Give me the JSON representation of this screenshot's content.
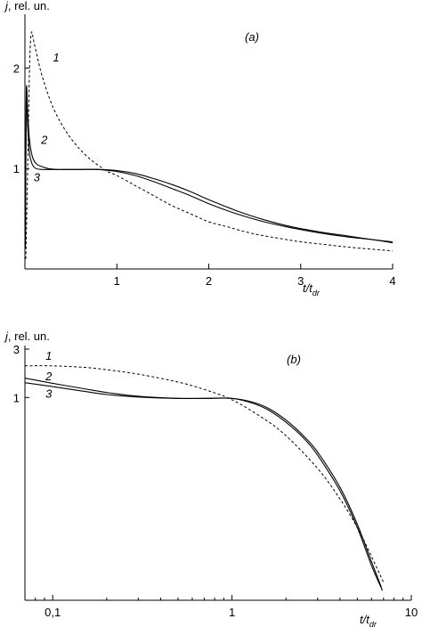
{
  "chart_data": [
    {
      "type": "line",
      "panel_label": "(a)",
      "ylabel_symbol": "j",
      "ylabel_unit": ", rel. un.",
      "xlabel_main": "t/t",
      "xlabel_sub": "dr",
      "xlim": [
        0,
        4
      ],
      "ylim": [
        0,
        2.5
      ],
      "xscale": "linear",
      "yscale": "linear",
      "x_ticks": [
        {
          "v": 1,
          "label": "1"
        },
        {
          "v": 2,
          "label": "2"
        },
        {
          "v": 3,
          "label": "3"
        },
        {
          "v": 4,
          "label": "4"
        }
      ],
      "y_ticks": [
        {
          "v": 1,
          "label": "1"
        },
        {
          "v": 2,
          "label": "2"
        }
      ],
      "series": [
        {
          "name": "1",
          "style": "dashed",
          "x": [
            0.01,
            0.03,
            0.05,
            0.07,
            0.1,
            0.15,
            0.2,
            0.3,
            0.4,
            0.5,
            0.6,
            0.7,
            0.8,
            0.9,
            1.0,
            1.2,
            1.4,
            1.6,
            1.8,
            2.0,
            2.2,
            2.4,
            2.6,
            2.8,
            3.0,
            3.3,
            3.6,
            4.0
          ],
          "y": [
            0.1,
            1.0,
            2.0,
            2.35,
            2.25,
            2.05,
            1.88,
            1.62,
            1.44,
            1.3,
            1.19,
            1.1,
            1.03,
            0.97,
            0.93,
            0.83,
            0.73,
            0.63,
            0.55,
            0.47,
            0.42,
            0.37,
            0.33,
            0.3,
            0.27,
            0.24,
            0.21,
            0.18
          ]
        },
        {
          "name": "2",
          "style": "solid",
          "x": [
            0.005,
            0.015,
            0.03,
            0.05,
            0.08,
            0.12,
            0.18,
            0.25,
            0.35,
            0.45,
            0.6,
            0.8,
            1.0,
            1.2,
            1.4,
            1.6,
            1.8,
            2.0,
            2.3,
            2.6,
            2.9,
            3.2,
            3.5,
            3.8,
            4.0
          ],
          "y": [
            0.2,
            1.75,
            1.55,
            1.28,
            1.12,
            1.05,
            1.02,
            1.0,
            0.99,
            0.99,
            0.99,
            0.99,
            0.97,
            0.93,
            0.87,
            0.8,
            0.73,
            0.65,
            0.55,
            0.47,
            0.41,
            0.36,
            0.32,
            0.29,
            0.26
          ]
        },
        {
          "name": "3",
          "style": "solid",
          "x": [
            0.005,
            0.015,
            0.03,
            0.05,
            0.08,
            0.12,
            0.18,
            0.25,
            0.35,
            0.45,
            0.6,
            0.8,
            1.0,
            1.2,
            1.4,
            1.6,
            1.8,
            2.0,
            2.3,
            2.6,
            2.9,
            3.2,
            3.5,
            3.8,
            4.0
          ],
          "y": [
            0.2,
            1.7,
            1.42,
            1.15,
            1.04,
            1.0,
            0.99,
            0.99,
            0.99,
            0.99,
            0.99,
            0.99,
            0.98,
            0.95,
            0.9,
            0.84,
            0.77,
            0.69,
            0.58,
            0.49,
            0.42,
            0.37,
            0.33,
            0.29,
            0.27
          ]
        }
      ],
      "curve_labels": [
        {
          "text": "1",
          "x": 0.34,
          "y": 2.1
        },
        {
          "text": "2",
          "x": 0.21,
          "y": 1.28
        },
        {
          "text": "3",
          "x": 0.13,
          "y": 0.91
        }
      ]
    },
    {
      "type": "line",
      "panel_label": "(b)",
      "ylabel_symbol": "j",
      "ylabel_unit": ", rel. un.",
      "xlabel_main": "t/t",
      "xlabel_sub": "dr",
      "xlim": [
        0.07,
        10
      ],
      "ylim": [
        0.01,
        3
      ],
      "xscale": "log",
      "yscale": "log",
      "x_ticks": [
        {
          "v": 0.1,
          "label": "0,1"
        },
        {
          "v": 1,
          "label": "1"
        },
        {
          "v": 10,
          "label": "10"
        }
      ],
      "y_ticks": [
        {
          "v": 1,
          "label": "1"
        },
        {
          "v": 3,
          "label": "3"
        }
      ],
      "series": [
        {
          "name": "1",
          "style": "dashed",
          "x": [
            0.07,
            0.1,
            0.15,
            0.2,
            0.3,
            0.5,
            0.7,
            1.0,
            1.5,
            2.0,
            3.0,
            4.0,
            5.0,
            6.0,
            7.0
          ],
          "y": [
            2.05,
            2.05,
            1.98,
            1.88,
            1.7,
            1.42,
            1.2,
            0.95,
            0.62,
            0.42,
            0.2,
            0.1,
            0.052,
            0.027,
            0.015
          ]
        },
        {
          "name": "2",
          "style": "solid",
          "x": [
            0.07,
            0.1,
            0.15,
            0.2,
            0.3,
            0.5,
            0.7,
            1.0,
            1.3,
            1.6,
            2.0,
            2.5,
            3.0,
            4.0,
            5.0,
            6.0,
            6.8
          ],
          "y": [
            1.55,
            1.38,
            1.22,
            1.12,
            1.03,
            0.98,
            0.98,
            0.98,
            0.9,
            0.78,
            0.6,
            0.42,
            0.29,
            0.13,
            0.056,
            0.024,
            0.0135
          ]
        },
        {
          "name": "3",
          "style": "solid",
          "x": [
            0.07,
            0.1,
            0.15,
            0.2,
            0.3,
            0.5,
            0.7,
            1.0,
            1.3,
            1.6,
            2.0,
            2.5,
            3.0,
            4.0,
            5.0,
            6.0,
            6.9
          ],
          "y": [
            1.4,
            1.28,
            1.15,
            1.07,
            1.01,
            0.98,
            0.98,
            0.98,
            0.88,
            0.75,
            0.57,
            0.4,
            0.27,
            0.12,
            0.052,
            0.022,
            0.0125
          ]
        }
      ],
      "curve_labels": [
        {
          "text": "1",
          "x": 0.095,
          "y": 2.55
        },
        {
          "text": "2",
          "x": 0.095,
          "y": 1.6
        },
        {
          "text": "3",
          "x": 0.095,
          "y": 1.08
        }
      ]
    }
  ]
}
